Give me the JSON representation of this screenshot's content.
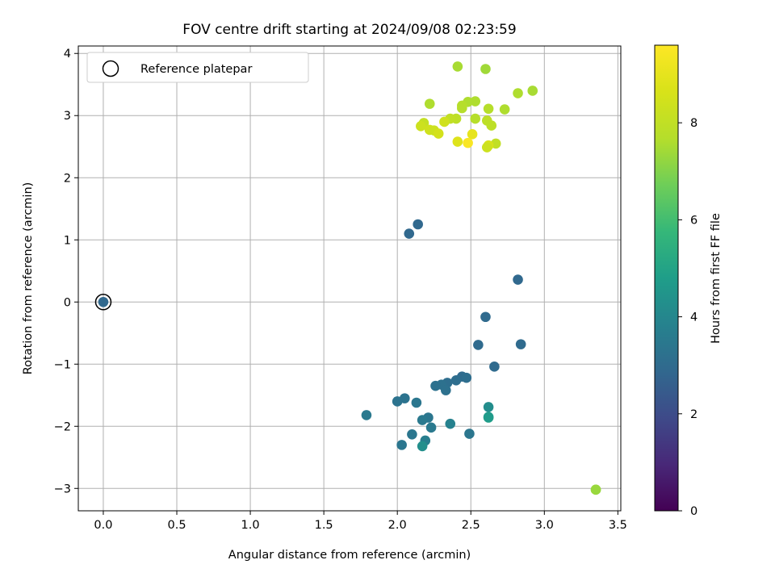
{
  "chart_data": {
    "type": "scatter",
    "title": "FOV centre drift starting at 2024/09/08 02:23:59",
    "xlabel": "Angular distance from reference (arcmin)",
    "ylabel": "Rotation from reference (arcmin)",
    "xlim": [
      -0.17,
      3.52
    ],
    "ylim": [
      -3.36,
      4.12
    ],
    "xticks": [
      "0.0",
      "0.5",
      "1.0",
      "1.5",
      "2.0",
      "2.5",
      "3.0",
      "3.5"
    ],
    "yticks": [
      "−3",
      "−2",
      "−1",
      "0",
      "1",
      "2",
      "3",
      "4"
    ],
    "grid": true,
    "legend": {
      "placement": "top-left",
      "entries": [
        "Reference platepar"
      ]
    },
    "reference_point": {
      "x": 0.0,
      "y": 0.0
    },
    "colorbar": {
      "label": "Hours from first FF file",
      "colormap": "viridis",
      "range": [
        0,
        9.6
      ],
      "ticks": [
        "0",
        "2",
        "4",
        "6",
        "8"
      ]
    },
    "points": [
      {
        "x": 0.0,
        "y": 0.0,
        "c": 2.9
      },
      {
        "x": 2.14,
        "y": 1.25,
        "c": 2.9
      },
      {
        "x": 2.08,
        "y": 1.1,
        "c": 2.9
      },
      {
        "x": 2.82,
        "y": 0.36,
        "c": 2.9
      },
      {
        "x": 2.6,
        "y": -0.24,
        "c": 3.0
      },
      {
        "x": 2.55,
        "y": -0.69,
        "c": 3.0
      },
      {
        "x": 2.84,
        "y": -0.68,
        "c": 3.0
      },
      {
        "x": 2.66,
        "y": -1.04,
        "c": 3.0
      },
      {
        "x": 2.44,
        "y": -1.2,
        "c": 3.0
      },
      {
        "x": 2.47,
        "y": -1.22,
        "c": 3.1
      },
      {
        "x": 2.4,
        "y": -1.26,
        "c": 3.1
      },
      {
        "x": 2.34,
        "y": -1.3,
        "c": 3.1
      },
      {
        "x": 2.3,
        "y": -1.33,
        "c": 3.2
      },
      {
        "x": 2.26,
        "y": -1.35,
        "c": 3.2
      },
      {
        "x": 2.33,
        "y": -1.42,
        "c": 3.2
      },
      {
        "x": 2.05,
        "y": -1.55,
        "c": 3.3
      },
      {
        "x": 2.0,
        "y": -1.6,
        "c": 3.3
      },
      {
        "x": 2.13,
        "y": -1.62,
        "c": 3.4
      },
      {
        "x": 1.79,
        "y": -1.82,
        "c": 3.5
      },
      {
        "x": 2.21,
        "y": -1.86,
        "c": 3.4
      },
      {
        "x": 2.17,
        "y": -1.9,
        "c": 3.5
      },
      {
        "x": 2.36,
        "y": -1.96,
        "c": 3.8
      },
      {
        "x": 2.23,
        "y": -2.02,
        "c": 3.5
      },
      {
        "x": 2.1,
        "y": -2.13,
        "c": 3.4
      },
      {
        "x": 2.49,
        "y": -2.12,
        "c": 3.4
      },
      {
        "x": 2.19,
        "y": -2.23,
        "c": 3.7
      },
      {
        "x": 2.03,
        "y": -2.3,
        "c": 3.4
      },
      {
        "x": 2.17,
        "y": -2.32,
        "c": 4.3
      },
      {
        "x": 2.62,
        "y": -1.69,
        "c": 4.2
      },
      {
        "x": 2.62,
        "y": -1.86,
        "c": 4.9
      },
      {
        "x": 2.62,
        "y": -1.85,
        "c": 4.7
      },
      {
        "x": 3.35,
        "y": -3.02,
        "c": 7.2
      },
      {
        "x": 3.35,
        "y": -3.02,
        "c": 7.3
      },
      {
        "x": 2.41,
        "y": 3.79,
        "c": 7.5
      },
      {
        "x": 2.6,
        "y": 3.75,
        "c": 7.4
      },
      {
        "x": 2.92,
        "y": 3.4,
        "c": 7.5
      },
      {
        "x": 2.82,
        "y": 3.36,
        "c": 7.6
      },
      {
        "x": 2.22,
        "y": 3.19,
        "c": 7.6
      },
      {
        "x": 2.53,
        "y": 3.23,
        "c": 7.6
      },
      {
        "x": 2.48,
        "y": 3.22,
        "c": 7.6
      },
      {
        "x": 2.44,
        "y": 3.16,
        "c": 7.7
      },
      {
        "x": 2.44,
        "y": 3.12,
        "c": 7.7
      },
      {
        "x": 2.62,
        "y": 3.11,
        "c": 7.7
      },
      {
        "x": 2.73,
        "y": 3.1,
        "c": 7.6
      },
      {
        "x": 2.53,
        "y": 2.95,
        "c": 7.7
      },
      {
        "x": 2.4,
        "y": 2.95,
        "c": 7.9
      },
      {
        "x": 2.36,
        "y": 2.95,
        "c": 8.0
      },
      {
        "x": 2.61,
        "y": 2.92,
        "c": 7.9
      },
      {
        "x": 2.32,
        "y": 2.9,
        "c": 8.4
      },
      {
        "x": 2.18,
        "y": 2.88,
        "c": 8.1
      },
      {
        "x": 2.64,
        "y": 2.84,
        "c": 7.9
      },
      {
        "x": 2.16,
        "y": 2.83,
        "c": 8.3
      },
      {
        "x": 2.22,
        "y": 2.77,
        "c": 8.4
      },
      {
        "x": 2.25,
        "y": 2.76,
        "c": 8.3
      },
      {
        "x": 2.28,
        "y": 2.71,
        "c": 8.5
      },
      {
        "x": 2.51,
        "y": 2.7,
        "c": 9.0
      },
      {
        "x": 2.41,
        "y": 2.58,
        "c": 8.8
      },
      {
        "x": 2.67,
        "y": 2.55,
        "c": 8.0
      },
      {
        "x": 2.48,
        "y": 2.56,
        "c": 9.5
      },
      {
        "x": 2.62,
        "y": 2.52,
        "c": 8.6
      },
      {
        "x": 2.61,
        "y": 2.49,
        "c": 8.3
      }
    ]
  }
}
